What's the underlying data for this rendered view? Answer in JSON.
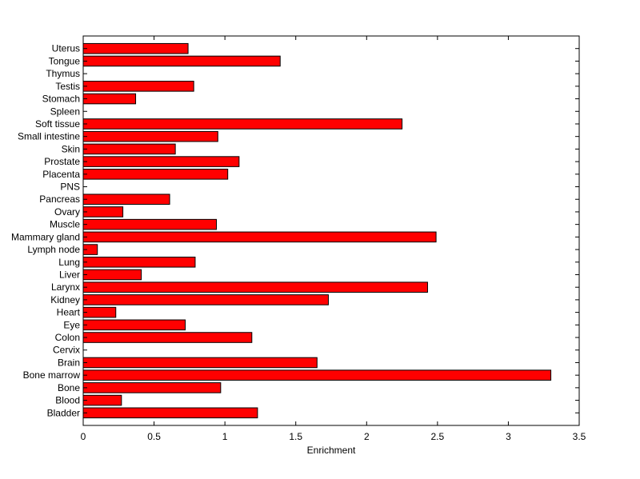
{
  "chart_data": {
    "type": "bar",
    "orientation": "horizontal",
    "xlabel": "Enrichment",
    "xlim": [
      0,
      3.5
    ],
    "xticks": [
      "0",
      "0.5",
      "1",
      "1.5",
      "2",
      "2.5",
      "3",
      "3.5"
    ],
    "categories": [
      "Uterus",
      "Tongue",
      "Thymus",
      "Testis",
      "Stomach",
      "Spleen",
      "Soft tissue",
      "Small intestine",
      "Skin",
      "Prostate",
      "Placenta",
      "PNS",
      "Pancreas",
      "Ovary",
      "Muscle",
      "Mammary gland",
      "Lymph node",
      "Lung",
      "Liver",
      "Larynx",
      "Kidney",
      "Heart",
      "Eye",
      "Colon",
      "Cervix",
      "Brain",
      "Bone marrow",
      "Bone",
      "Blood",
      "Bladder"
    ],
    "values": [
      0.74,
      1.39,
      0,
      0.78,
      0.37,
      0,
      2.25,
      0.95,
      0.65,
      1.1,
      1.02,
      0,
      0.61,
      0.28,
      0.94,
      2.49,
      0.1,
      0.79,
      0.41,
      2.43,
      1.73,
      0.23,
      0.72,
      1.19,
      0,
      1.65,
      3.3,
      0.97,
      0.27,
      1.23
    ],
    "bar_color": "#ff0000",
    "grid": false,
    "legend": "none"
  }
}
